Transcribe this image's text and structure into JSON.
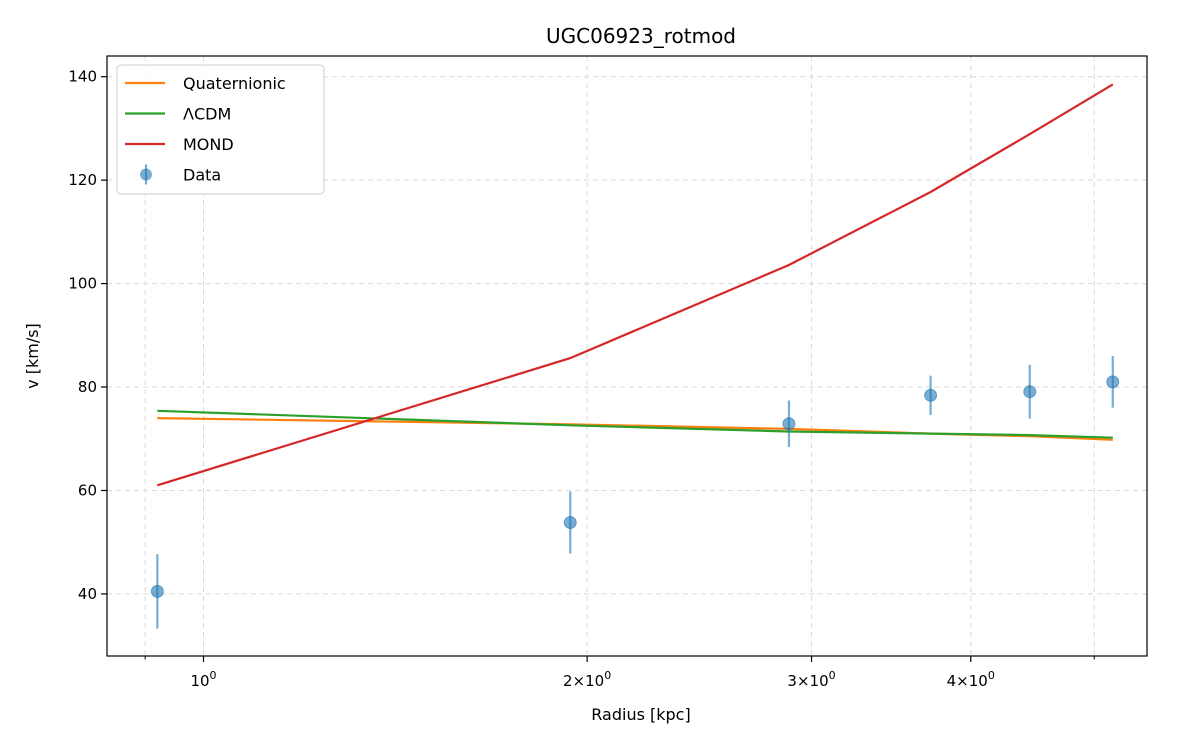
{
  "chart_data": {
    "type": "line",
    "title": "UGC06923_rotmod",
    "xlabel": "Radius [kpc]",
    "ylabel": "v [km/s]",
    "xscale": "log",
    "xlim": [
      0.84,
      5.5
    ],
    "ylim": [
      28,
      144
    ],
    "grid": true,
    "legend_position": "top-left",
    "x_ticks": [
      {
        "value": 1,
        "base": "10",
        "exp": "0"
      },
      {
        "value": 2,
        "base": "2×10",
        "exp": "0"
      },
      {
        "value": 3,
        "base": "3×10",
        "exp": "0"
      },
      {
        "value": 4,
        "base": "4×10",
        "exp": "0"
      }
    ],
    "x_minor_ticks": [
      0.9,
      5
    ],
    "y_ticks": [
      {
        "value": 40,
        "label": "40"
      },
      {
        "value": 60,
        "label": "60"
      },
      {
        "value": 80,
        "label": "80"
      },
      {
        "value": 100,
        "label": "100"
      },
      {
        "value": 120,
        "label": "120"
      },
      {
        "value": 140,
        "label": "140"
      }
    ],
    "series": [
      {
        "name": "Quaternionic",
        "kind": "line",
        "color": "#ff7f0e",
        "x": [
          0.92,
          1.94,
          2.88,
          3.72,
          4.45,
          5.17
        ],
        "y": [
          74.0,
          72.8,
          71.9,
          71.0,
          70.5,
          69.8
        ]
      },
      {
        "name": "ΛCDM",
        "kind": "line",
        "color": "#2ca02c",
        "x": [
          0.92,
          1.94,
          2.88,
          3.72,
          4.45,
          5.17
        ],
        "y": [
          75.4,
          72.6,
          71.4,
          71.0,
          70.7,
          70.2
        ]
      },
      {
        "name": "MOND",
        "kind": "line",
        "color": "#d62728",
        "x": [
          0.92,
          1.94,
          2.88,
          3.72,
          4.45,
          5.17
        ],
        "y": [
          61.0,
          85.6,
          103.6,
          117.7,
          128.9,
          138.5
        ]
      },
      {
        "name": "Data",
        "kind": "errorbar",
        "color": "#1f77b4",
        "x": [
          0.92,
          1.94,
          2.88,
          3.72,
          4.45,
          5.17
        ],
        "y": [
          40.5,
          53.8,
          72.9,
          78.4,
          79.1,
          81.0
        ],
        "yerr": [
          7.2,
          6.0,
          4.5,
          3.8,
          5.2,
          5.0
        ]
      }
    ]
  }
}
